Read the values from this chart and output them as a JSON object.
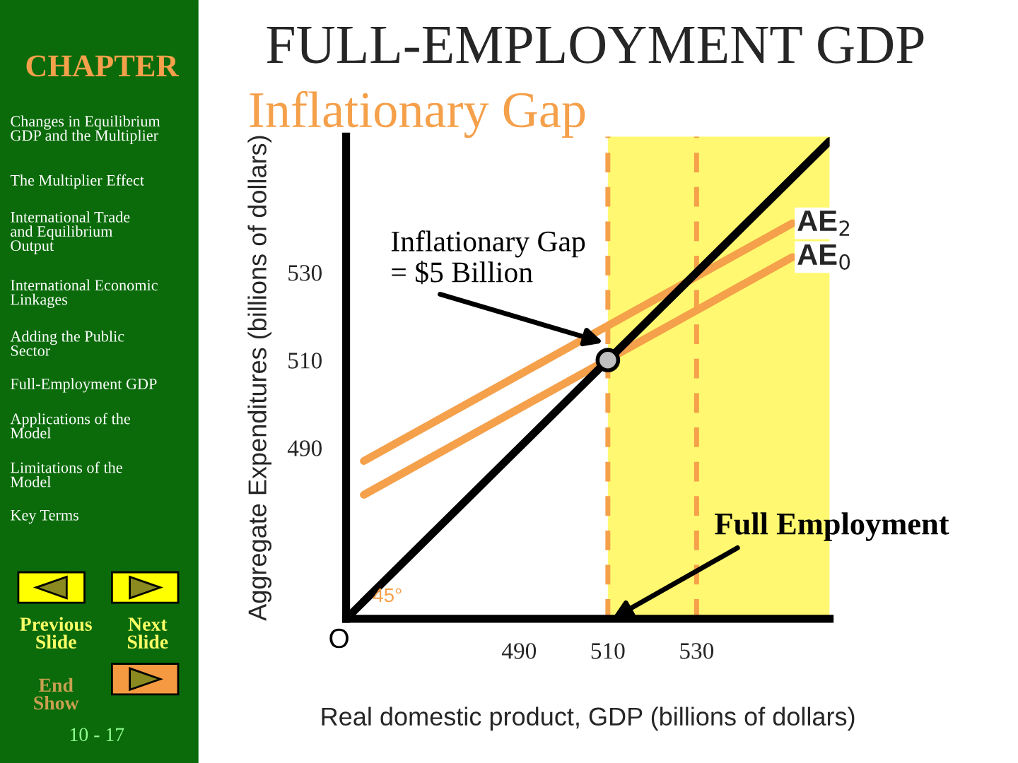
{
  "chart_data": {
    "type": "line",
    "title": "FULL-EMPLOYMENT GDP",
    "subtitle": "Inflationary Gap",
    "xlabel": "Real domestic product, GDP (billions of dollars)",
    "ylabel": "Aggregate Expenditures (billions of dollars)",
    "series": [
      {
        "name": "AE$_{2}$",
        "color": "#f5a04a",
        "x": [
          455,
          551.6
        ],
        "values": [
          487,
          541.2
        ]
      },
      {
        "name": "AE$_{0}$",
        "color": "#f5a04a",
        "x": [
          455,
          551.6
        ],
        "values": [
          479.3,
          533.5
        ]
      },
      {
        "color": "#000000",
        "x": [
          451,
          560
        ],
        "values": [
          451,
          560
        ]
      },
      {
        "type": "scatter",
        "color": "#c0c0c0",
        "marker": "circle",
        "x": [
          510
        ],
        "values": [
          510
        ]
      }
    ],
    "xlim": [
      451,
      560
    ],
    "ylim": [
      451,
      561
    ],
    "xticks": [
      490,
      510,
      530
    ],
    "yticks": [
      490,
      510,
      530
    ],
    "ref_lines": [
      {
        "axis": "x",
        "value": 510,
        "color": "#f5a04a",
        "line_style": "dashed"
      },
      {
        "axis": "x",
        "value": 530,
        "color": "#f5a04a",
        "line_style": "dashed"
      }
    ],
    "bands": [
      {
        "axis": "x",
        "from": 510,
        "to": 560,
        "color": "#fff870"
      }
    ],
    "grid": false,
    "legend": false,
    "annotations": [
      {
        "text": "Inflationary Gap\n= $5 Billion",
        "x": 509,
        "y": 514
      },
      {
        "text": "Full Employment",
        "x": 511,
        "y": 451
      },
      {
        "text": "O",
        "x": 451,
        "y": 451
      },
      {
        "text": "45°",
        "x": 458,
        "y": 455
      },
      "CHAPTER",
      "Changes in Equilibrium\nGDP and the Multiplier",
      "The Multiplier Effect",
      "International Trade\nand Equilibrium\nOutput",
      "International Economic\nLinkages",
      "Adding the Public\nSector",
      "Full-Employment GDP",
      "Applications of the\nModel",
      "Limitations of the\nModel",
      "Key Terms",
      "Previous\nSlide",
      "Next\nSlide",
      "End\nShow",
      "10 - 17"
    ]
  }
}
